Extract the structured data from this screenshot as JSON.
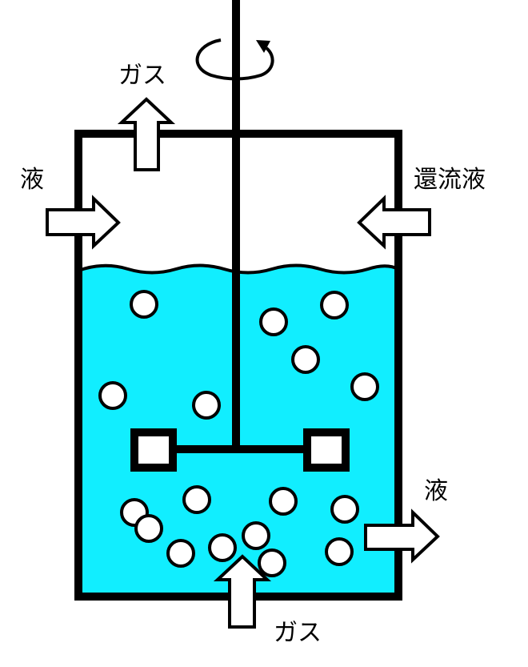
{
  "labels": {
    "gas_out": "ガス",
    "liquid_in": "液",
    "reflux_in": "還流液",
    "liquid_out": "液",
    "gas_in": "ガス"
  },
  "colors": {
    "liquid": "#11EEFF",
    "outline": "#000000",
    "background": "#FFFFFF"
  },
  "icons": {
    "rotation": "rotation-arrow-icon"
  }
}
